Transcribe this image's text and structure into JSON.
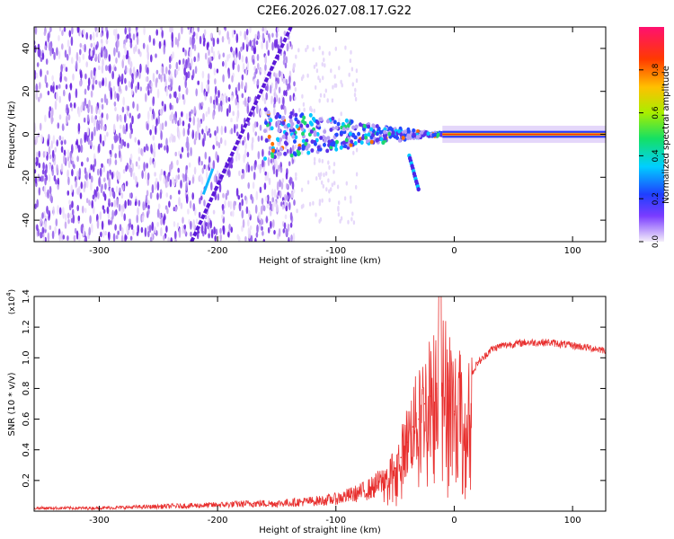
{
  "title": "C2E6.2026.027.08.17.G22",
  "chart_data": [
    {
      "type": "heatmap",
      "name": "spectrogram",
      "xlabel": "Height of straight line (km)",
      "ylabel": "Frequency (Hz)",
      "xlim": [
        -355,
        128
      ],
      "ylim": [
        -50,
        50
      ],
      "xticks": [
        -300,
        -200,
        -100,
        0,
        100
      ],
      "yticks": [
        -40,
        -20,
        0,
        20,
        40
      ],
      "colorbar": {
        "label": "Normalized spectral amplitude",
        "range": [
          0,
          1
        ],
        "ticks": [
          0.0,
          0.2,
          0.4,
          0.6,
          0.8
        ]
      },
      "features": {
        "noise_region_x": [
          -355,
          -135
        ],
        "drift_line": {
          "x": [
            -222,
            -138
          ],
          "y": [
            -50,
            50
          ]
        },
        "central_band": {
          "x": [
            -160,
            128
          ],
          "y": 0
        }
      }
    },
    {
      "type": "line",
      "name": "snr",
      "xlabel": "Height of straight line (km)",
      "ylabel": "SNR (10 * v/v)",
      "y_multiplier": "(x10",
      "y_multiplier_exp": "4",
      "y_multiplier_close": ")",
      "xlim": [
        -355,
        128
      ],
      "ylim": [
        0,
        1.4
      ],
      "xticks": [
        -300,
        -200,
        -100,
        0,
        100
      ],
      "yticks": [
        0.2,
        0.4,
        0.6,
        0.8,
        1.0,
        1.2,
        1.4
      ],
      "series": [
        {
          "name": "SNR",
          "color": "#e8302f",
          "x": [
            -355,
            -300,
            -250,
            -200,
            -170,
            -150,
            -130,
            -110,
            -100,
            -90,
            -80,
            -70,
            -60,
            -50,
            -45,
            -40,
            -35,
            -30,
            -25,
            -20,
            -15,
            -10,
            -5,
            0,
            5,
            10,
            15,
            20,
            25,
            30,
            40,
            60,
            80,
            100,
            128
          ],
          "y": [
            0.02,
            0.02,
            0.03,
            0.04,
            0.05,
            0.05,
            0.06,
            0.07,
            0.08,
            0.1,
            0.12,
            0.15,
            0.2,
            0.28,
            0.35,
            0.45,
            0.55,
            0.6,
            0.7,
            0.75,
            0.8,
            0.82,
            0.85,
            0.65,
            0.7,
            0.4,
            0.9,
            0.97,
            1.0,
            1.05,
            1.08,
            1.1,
            1.1,
            1.08,
            1.05
          ]
        }
      ]
    }
  ]
}
